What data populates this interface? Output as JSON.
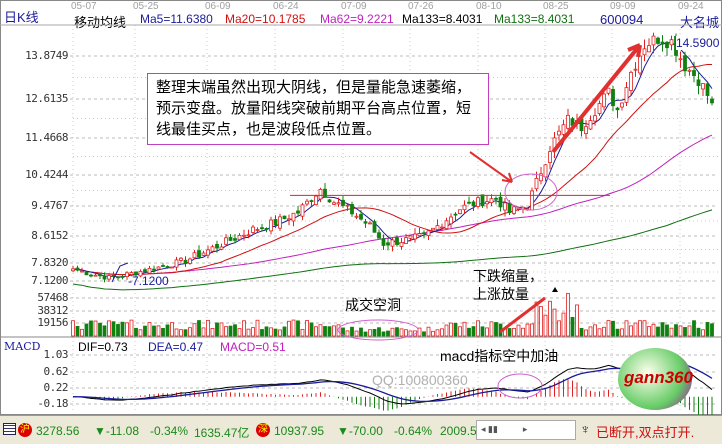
{
  "header": {
    "period_label": "日K线",
    "indicator_label": "移动均线",
    "ma_items": [
      {
        "text": "Ma5=11.6380",
        "color": "#1a1a9a"
      },
      {
        "text": "Ma20=10.1785",
        "color": "#d01010"
      },
      {
        "text": "Ma62=9.2221",
        "color": "#c020c0"
      },
      {
        "text": "Ma133=8.4031",
        "color": "#000000"
      },
      {
        "text": "Ma133=8.4031",
        "color": "#107010"
      }
    ],
    "stock_code": "600094",
    "stock_name": "大名城"
  },
  "macd_header": {
    "label": "MACD",
    "dif": "DIF=0.73",
    "dea": "DEA=0.47",
    "macd": "MACD=0.51"
  },
  "annotations": {
    "note": "整理末端虽然出现大阴线，但是量能急速萎缩，预示变盘。放量阳线突破前期平台高点位置，短线最佳买点，也是波段低点位置。",
    "volume_gap": "成交空洞",
    "volume_note_1": "下跌缩量，",
    "volume_note_2": "上涨放量",
    "macd_note": "macd指标空中加油",
    "low_label": "-7.1200",
    "high_label": "14.5900",
    "watermark_qq": "QQ:100800360",
    "logo": "gann360"
  },
  "status": {
    "sh_icon": "沪",
    "sh_index": "3278.56",
    "sh_change": "▼-11.08",
    "sh_pct": "-0.34%",
    "sh_amount": "1635.47亿",
    "sz_icon": "深",
    "sz_index": "10937.95",
    "sz_change": "▼-70.00",
    "sz_pct": "-0.64%",
    "sz_amount": "2009.5",
    "connection": "已断开,双点打开."
  },
  "colors": {
    "up": "#e02020",
    "down": "#108010",
    "ma5": "#1a1a9a",
    "ma20": "#d01010",
    "ma62": "#c020c0",
    "ma133": "#107010"
  },
  "chart_data": {
    "type": "candlestick",
    "date_ticks": [
      "05-07",
      "05-25",
      "06-09",
      "06-24",
      "07-09",
      "07-26",
      "08-10",
      "08-25",
      "09-09",
      "09-24"
    ],
    "price_ticks": [
      13.8749,
      12.6135,
      11.4668,
      10.4244,
      9.4767,
      8.6152,
      7.832,
      7.12
    ],
    "price_tick_labels": [
      "13.8749",
      "12.6135",
      "11.4668",
      "10.4244",
      "9.4767",
      "8.6152",
      "7.8320",
      "7.1200"
    ],
    "volume_ticks": [
      "57468",
      "38312",
      "19156"
    ],
    "macd_ticks": [
      "1.03",
      "0.62",
      "0.22",
      "-0.18"
    ],
    "low": 7.12,
    "high": 14.59,
    "platform_line": 9.8,
    "close_keypoints": [
      [
        0,
        7.6
      ],
      [
        4,
        7.4
      ],
      [
        8,
        7.25
      ],
      [
        10,
        7.3
      ],
      [
        15,
        7.5
      ],
      [
        20,
        7.7
      ],
      [
        25,
        7.9
      ],
      [
        30,
        8.2
      ],
      [
        35,
        8.5
      ],
      [
        40,
        8.8
      ],
      [
        45,
        9.0
      ],
      [
        50,
        9.3
      ],
      [
        55,
        10.0
      ],
      [
        58,
        9.6
      ],
      [
        62,
        9.3
      ],
      [
        66,
        8.9
      ],
      [
        69,
        8.4
      ],
      [
        74,
        8.5
      ],
      [
        78,
        8.6
      ],
      [
        82,
        9.0
      ],
      [
        86,
        9.4
      ],
      [
        90,
        9.6
      ],
      [
        94,
        9.7
      ],
      [
        97,
        9.3
      ],
      [
        101,
        9.5
      ],
      [
        103,
        10.2
      ],
      [
        106,
        11.2
      ],
      [
        110,
        12.0
      ],
      [
        113,
        11.8
      ],
      [
        116,
        12.3
      ],
      [
        119,
        12.8
      ],
      [
        121,
        12.3
      ],
      [
        124,
        13.4
      ],
      [
        127,
        14.2
      ],
      [
        130,
        14.4
      ],
      [
        133,
        14.3
      ],
      [
        136,
        13.6
      ],
      [
        139,
        13.2
      ],
      [
        142,
        12.5
      ]
    ]
  }
}
